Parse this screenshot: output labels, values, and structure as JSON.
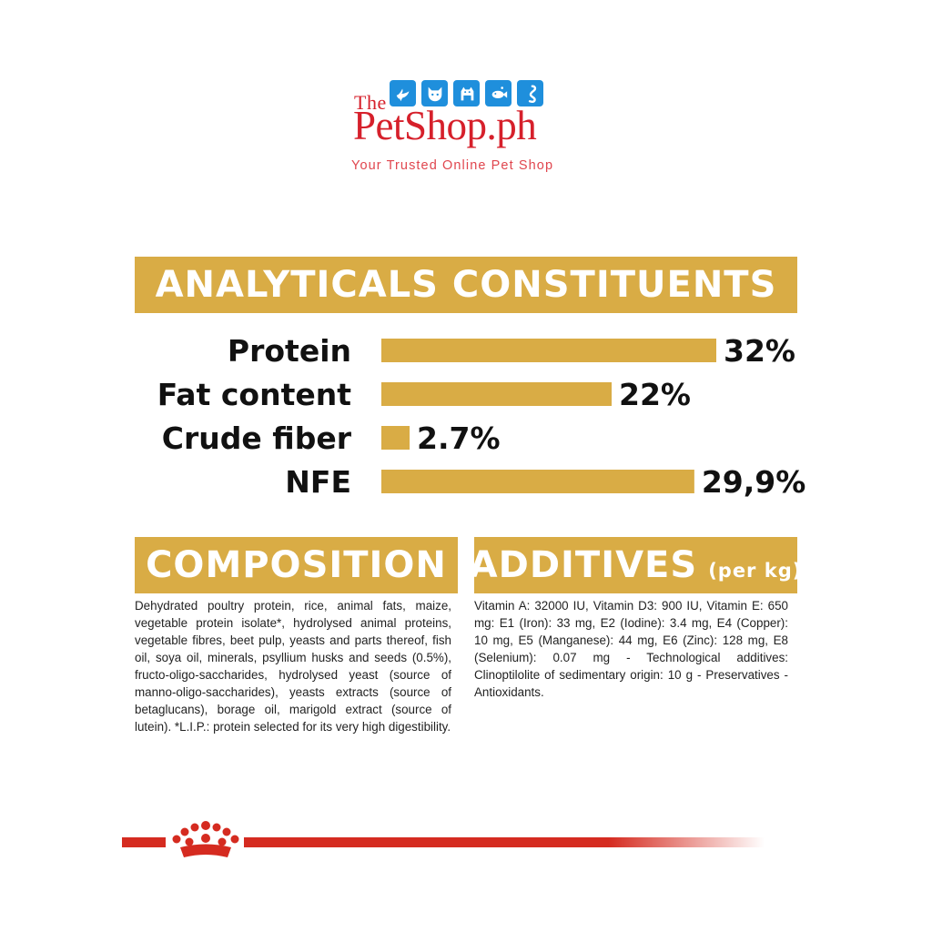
{
  "logo": {
    "the": "The",
    "name": "PetShop.ph",
    "tagline": "Your Trusted Online Pet Shop",
    "icons": [
      "bird-icon",
      "cat-icon",
      "dog-icon",
      "fish-icon",
      "snake-icon"
    ],
    "icon_color": "#1f8fdc",
    "text_color": "#d6202b"
  },
  "sections": {
    "analyticals_title": "ANALYTICALS CONSTITUENTS",
    "composition_title": "COMPOSITION",
    "additives_title": "ADDITIVES",
    "additives_subtitle": "(per kg)"
  },
  "colors": {
    "accent": "#d9ac45",
    "brand_red": "#d52b20"
  },
  "chart_data": {
    "type": "bar",
    "orientation": "horizontal",
    "title": "ANALYTICALS CONSTITUENTS",
    "categories": [
      "Protein",
      "Fat content",
      "Crude fiber",
      "NFE"
    ],
    "values": [
      32,
      22,
      2.7,
      29.9
    ],
    "value_labels": [
      "32%",
      "22%",
      "2.7%",
      "29,9%"
    ],
    "xlabel": "",
    "ylabel": "",
    "xlim": [
      0,
      32
    ],
    "grid": false,
    "legend": "none"
  },
  "composition_text": "Dehydrated poultry protein, rice, animal fats, maize, vegetable protein isolate*, hydrolysed animal proteins, vegetable fibres, beet pulp, yeasts and parts thereof, fish oil, soya oil, minerals, psyllium husks and seeds (0.5%), fructo-oligo-saccharides, hydrolysed yeast (source of manno-oligo-saccharides), yeasts extracts (source of betaglucans), borage oil, marigold extract (source of lutein). *L.I.P.: protein selected for its very high digestibility.",
  "additives_text": "Vitamin A: 32000 IU, Vitamin D3: 900 IU, Vitamin E: 650 mg: E1 (Iron): 33 mg, E2 (Iodine): 3.4 mg, E4 (Copper): 10 mg, E5 (Manganese): 44 mg, E6 (Zinc): 128 mg, E8 (Selenium): 0.07 mg - Technological additives: Clinoptilolite of sedimentary origin: 10 g - Preservatives - Antioxidants.",
  "footer": {
    "crown_icon": "royal-canin-crown-icon"
  }
}
